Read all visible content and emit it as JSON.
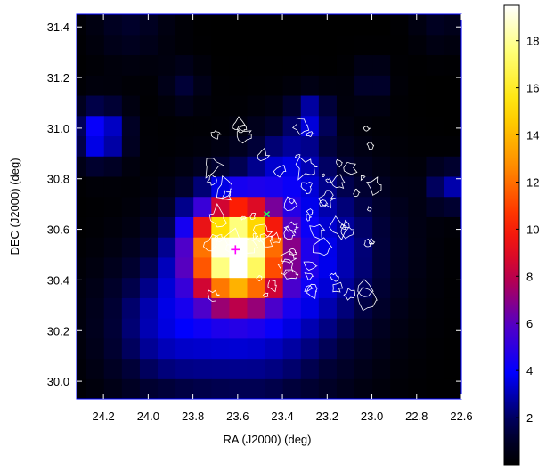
{
  "chart_data": {
    "type": "heatmap",
    "title": "",
    "xlabel": "RA (J2000) (deg)",
    "ylabel": "DEC (J2000) (deg)",
    "xlim": [
      24.32,
      22.6
    ],
    "ylim": [
      29.93,
      31.45
    ],
    "x_ticks": [
      24.2,
      24.0,
      23.8,
      23.6,
      23.4,
      23.2,
      23.0,
      22.8,
      22.6
    ],
    "x_tick_labels": [
      "24.2",
      "24.0",
      "23.8",
      "23.6",
      "23.4",
      "23.2",
      "23.0",
      "22.8",
      "22.6"
    ],
    "y_ticks": [
      30.0,
      30.2,
      30.4,
      30.6,
      30.8,
      31.0,
      31.2,
      31.4
    ],
    "y_tick_labels": [
      "30.0",
      "30.2",
      "30.4",
      "30.6",
      "30.8",
      "31.0",
      "31.2",
      "31.4"
    ],
    "colorbar": {
      "range": [
        0,
        19.5
      ],
      "ticks": [
        2,
        4,
        6,
        8,
        10,
        12,
        14,
        16,
        18
      ],
      "tick_labels": [
        "2",
        "4",
        "6",
        "8",
        "10",
        "12",
        "14",
        "16",
        "18"
      ],
      "colormap": "heat (black-blue-red-yellow-white)"
    },
    "pixel_size_deg": 0.08,
    "grid": false,
    "sources": [
      {
        "name": "",
        "ra": 23.61,
        "dec": 30.52,
        "peak": 19.5,
        "width_deg": 0.13
      },
      {
        "name": "",
        "ra": 23.52,
        "dec": 30.3,
        "peak": 3.5,
        "width_deg": 0.28
      },
      {
        "name": "",
        "ra": 23.95,
        "dec": 30.22,
        "peak": 2.3,
        "width_deg": 0.18
      },
      {
        "name": "",
        "ra": 23.2,
        "dec": 30.55,
        "peak": 2.2,
        "width_deg": 0.22
      },
      {
        "name": "",
        "ra": 23.37,
        "dec": 30.85,
        "peak": 2.4,
        "width_deg": 0.12
      },
      {
        "name": "",
        "ra": 23.27,
        "dec": 31.05,
        "peak": 3.0,
        "width_deg": 0.06
      },
      {
        "name": "",
        "ra": 24.22,
        "dec": 30.98,
        "peak": 4.5,
        "width_deg": 0.08
      },
      {
        "name": "",
        "ra": 22.66,
        "dec": 30.77,
        "peak": 3.0,
        "width_deg": 0.06
      },
      {
        "name": "",
        "ra": 23.84,
        "dec": 31.17,
        "peak": 1.4,
        "width_deg": 0.06
      },
      {
        "name": "",
        "ra": 23.0,
        "dec": 31.18,
        "peak": 1.3,
        "width_deg": 0.06
      },
      {
        "name": "",
        "ra": 24.08,
        "dec": 31.43,
        "peak": 1.1,
        "width_deg": 0.12
      },
      {
        "name": "",
        "ra": 22.7,
        "dec": 31.42,
        "peak": 0.9,
        "width_deg": 0.08
      }
    ],
    "markers": [
      {
        "shape": "plus",
        "ra": 23.61,
        "dec": 30.52,
        "color": "#ff00ff"
      },
      {
        "shape": "cross",
        "ra": 23.47,
        "dec": 30.66,
        "color": "#22ff55"
      }
    ],
    "contours": {
      "color": "#ffffff",
      "extent_ra": [
        23.72,
        22.98
      ],
      "extent_dec": [
        30.32,
        31.02
      ]
    }
  },
  "colors": {
    "frame": "#0000ff",
    "background": "#000000",
    "contour": "#ffffff"
  }
}
